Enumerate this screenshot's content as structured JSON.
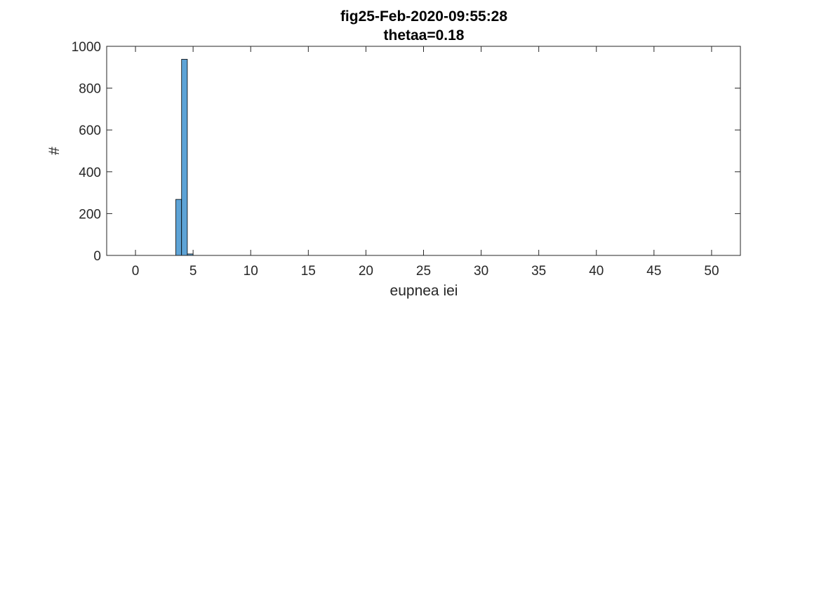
{
  "chart_data": {
    "type": "bar",
    "title": "fig25-Feb-2020-09:55:28",
    "subtitle": "thetaa=0.18",
    "xlabel": "eupnea iei",
    "ylabel": "#",
    "xlim": [
      -2.5,
      52.5
    ],
    "ylim": [
      0,
      1000
    ],
    "xticks": [
      0,
      5,
      10,
      15,
      20,
      25,
      30,
      35,
      40,
      45,
      50
    ],
    "yticks": [
      0,
      200,
      400,
      600,
      800,
      1000
    ],
    "grid": false,
    "legend": "none",
    "bar_color": "#5DA3D6",
    "edge_color": "#000000",
    "bins": [
      {
        "x0": 3.5,
        "x1": 4.0,
        "value": 268
      },
      {
        "x0": 4.0,
        "x1": 4.5,
        "value": 938
      },
      {
        "x0": 4.5,
        "x1": 5.0,
        "value": 7
      }
    ]
  }
}
